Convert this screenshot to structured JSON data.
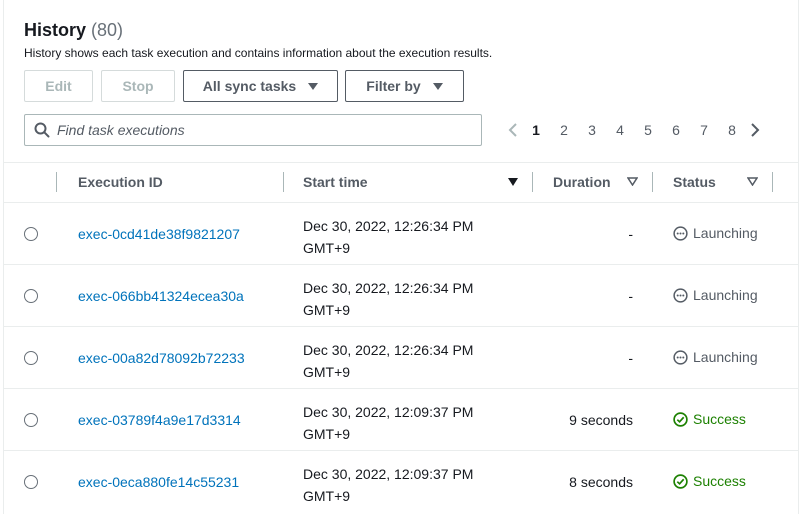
{
  "header": {
    "title": "History",
    "count": "(80)",
    "description": "History shows each task execution and contains information about the execution results."
  },
  "toolbar": {
    "edit_label": "Edit",
    "stop_label": "Stop",
    "task_filter_label": "All sync tasks",
    "filter_by_label": "Filter by"
  },
  "search": {
    "placeholder": "Find task executions",
    "value": ""
  },
  "pagination": {
    "pages": [
      "1",
      "2",
      "3",
      "4",
      "5",
      "6",
      "7",
      "8"
    ],
    "current": "1"
  },
  "table": {
    "columns": {
      "execution_id": "Execution ID",
      "start_time": "Start time",
      "duration": "Duration",
      "status": "Status"
    },
    "rows": [
      {
        "id": "exec-0cd41de38f9821207",
        "start_line1": "Dec 30, 2022, 12:26:34 PM",
        "start_line2": "GMT+9",
        "duration": "-",
        "status": "Launching",
        "status_type": "launching"
      },
      {
        "id": "exec-066bb41324ecea30a",
        "start_line1": "Dec 30, 2022, 12:26:34 PM",
        "start_line2": "GMT+9",
        "duration": "-",
        "status": "Launching",
        "status_type": "launching"
      },
      {
        "id": "exec-00a82d78092b72233",
        "start_line1": "Dec 30, 2022, 12:26:34 PM",
        "start_line2": "GMT+9",
        "duration": "-",
        "status": "Launching",
        "status_type": "launching"
      },
      {
        "id": "exec-03789f4a9e17d3314",
        "start_line1": "Dec 30, 2022, 12:09:37 PM",
        "start_line2": "GMT+9",
        "duration": "9 seconds",
        "status": "Success",
        "status_type": "success"
      },
      {
        "id": "exec-0eca880fe14c55231",
        "start_line1": "Dec 30, 2022, 12:09:37 PM",
        "start_line2": "GMT+9",
        "duration": "8 seconds",
        "status": "Success",
        "status_type": "success"
      }
    ]
  },
  "colors": {
    "link": "#0073bb",
    "success": "#1d8102",
    "muted": "#545b64"
  }
}
